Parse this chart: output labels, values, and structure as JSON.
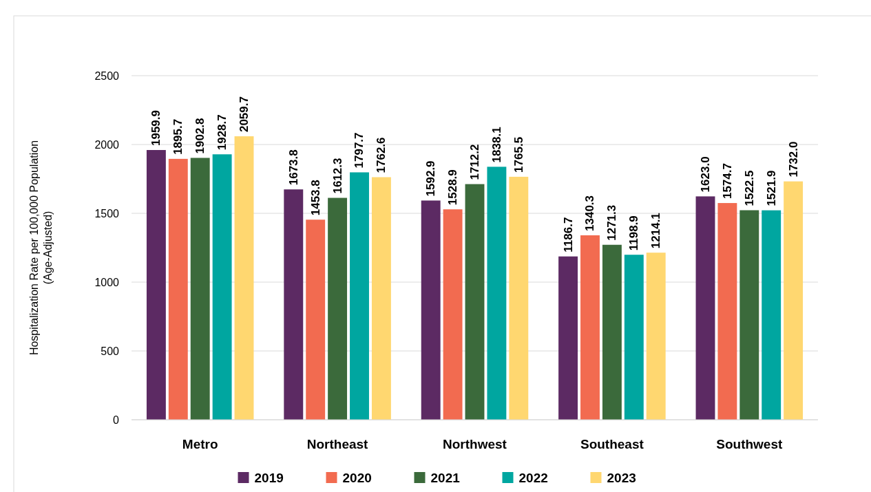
{
  "chart_data": {
    "type": "bar",
    "ylabel": "Hospitalization Rate per 100,000 Population\n(Age-Adjusted)",
    "categories": [
      "Metro",
      "Northeast",
      "Northwest",
      "Southeast",
      "Southwest"
    ],
    "series": [
      {
        "name": "2019",
        "color": "#5c2a63",
        "values": [
          1959.9,
          1673.8,
          1592.9,
          1186.7,
          1623.0
        ],
        "value_labels": [
          "1959.9",
          "1673.8",
          "1592.9",
          "1186.7",
          "1623.0"
        ]
      },
      {
        "name": "2020",
        "color": "#f26b50",
        "values": [
          1895.7,
          1453.8,
          1528.9,
          1340.3,
          1574.7
        ],
        "value_labels": [
          "1895.7",
          "1453.8",
          "1528.9",
          "1340.3",
          "1574.7"
        ]
      },
      {
        "name": "2021",
        "color": "#3b6a3b",
        "values": [
          1902.8,
          1612.3,
          1712.2,
          1271.3,
          1522.5
        ],
        "value_labels": [
          "1902.8",
          "1612.3",
          "1712.2",
          "1271.3",
          "1522.5"
        ]
      },
      {
        "name": "2022",
        "color": "#00a6a0",
        "values": [
          1928.7,
          1797.7,
          1838.1,
          1198.9,
          1521.9
        ],
        "value_labels": [
          "1928.7",
          "1797.7",
          "1838.1",
          "1198.9",
          "1521.9"
        ]
      },
      {
        "name": "2023",
        "color": "#ffd770",
        "values": [
          2059.7,
          1762.6,
          1765.5,
          1214.1,
          1732.0
        ],
        "value_labels": [
          "2059.7",
          "1762.6",
          "1765.5",
          "1214.1",
          "1732.0"
        ]
      }
    ],
    "ylim": [
      0,
      2500
    ],
    "yticks": [
      0,
      500,
      1000,
      1500,
      2000,
      2500
    ],
    "grid": "y",
    "legend": "bottom"
  }
}
